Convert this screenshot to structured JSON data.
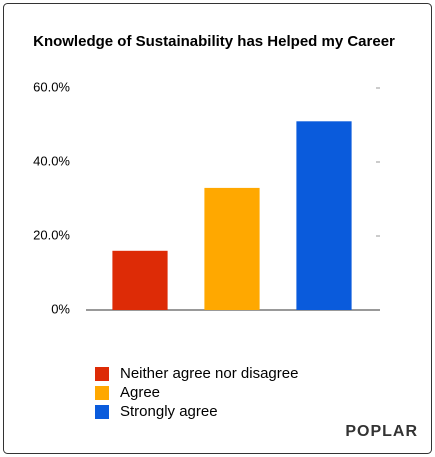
{
  "chart_data": {
    "type": "bar",
    "title": "Knowledge of Sustainability has Helped my Career",
    "categories": [
      "Neither agree nor disagree",
      "Agree",
      "Strongly agree"
    ],
    "values": [
      16,
      33,
      51
    ],
    "colors": [
      "#dd2b06",
      "#ffa800",
      "#0a5bdc"
    ],
    "ylim": [
      0,
      60
    ],
    "yticks": [
      {
        "value": 0,
        "label": "0%"
      },
      {
        "value": 20,
        "label": "20.0%"
      },
      {
        "value": 40,
        "label": "40.0%"
      },
      {
        "value": 60,
        "label": "60.0%"
      }
    ],
    "grid": false,
    "legend": "bottom",
    "logo": "POPLAR"
  }
}
